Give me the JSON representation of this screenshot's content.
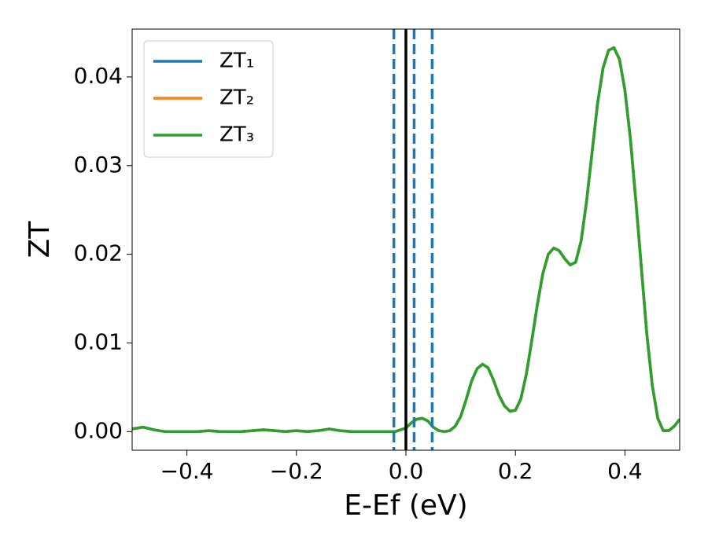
{
  "chart_data": {
    "type": "line",
    "xlabel": "E-Ef (eV)",
    "ylabel": "ZT",
    "x": [
      -0.5,
      -0.48,
      -0.46,
      -0.44,
      -0.42,
      -0.4,
      -0.38,
      -0.36,
      -0.34,
      -0.32,
      -0.3,
      -0.28,
      -0.26,
      -0.24,
      -0.22,
      -0.2,
      -0.18,
      -0.16,
      -0.14,
      -0.12,
      -0.1,
      -0.08,
      -0.06,
      -0.04,
      -0.02,
      0.0,
      0.01,
      0.02,
      0.03,
      0.04,
      0.05,
      0.06,
      0.07,
      0.08,
      0.09,
      0.1,
      0.11,
      0.12,
      0.13,
      0.14,
      0.15,
      0.16,
      0.17,
      0.18,
      0.19,
      0.2,
      0.21,
      0.22,
      0.23,
      0.24,
      0.25,
      0.26,
      0.27,
      0.28,
      0.29,
      0.3,
      0.31,
      0.32,
      0.33,
      0.34,
      0.35,
      0.36,
      0.37,
      0.38,
      0.39,
      0.4,
      0.41,
      0.42,
      0.43,
      0.44,
      0.45,
      0.46,
      0.47,
      0.48,
      0.49,
      0.5
    ],
    "series": [
      {
        "name": "ZT₁",
        "color": "#1f77b4",
        "values": [
          0.0003,
          0.0005,
          0.0002,
          0.0,
          0.0,
          0.0,
          0.0,
          0.0001,
          0.0,
          0.0,
          0.0,
          0.0001,
          0.0002,
          0.0001,
          0.0,
          0.0001,
          0.0,
          0.0001,
          0.0003,
          0.0001,
          0.0,
          0.0,
          0.0,
          0.0,
          0.0,
          0.0004,
          0.001,
          0.0014,
          0.0015,
          0.0012,
          0.0005,
          0.0001,
          0.0,
          0.0001,
          0.0006,
          0.0017,
          0.0036,
          0.0057,
          0.0071,
          0.0076,
          0.0072,
          0.0058,
          0.0041,
          0.0029,
          0.0023,
          0.0024,
          0.0037,
          0.0065,
          0.0103,
          0.0143,
          0.0178,
          0.02,
          0.0207,
          0.0204,
          0.0195,
          0.0188,
          0.0191,
          0.0215,
          0.026,
          0.0315,
          0.037,
          0.041,
          0.043,
          0.0433,
          0.042,
          0.0385,
          0.033,
          0.026,
          0.0185,
          0.011,
          0.0052,
          0.0015,
          0.0001,
          0.0001,
          0.0006,
          0.0014
        ]
      },
      {
        "name": "ZT₂",
        "color": "#ff7f0e",
        "values": [
          0.0003,
          0.0005,
          0.0002,
          0.0,
          0.0,
          0.0,
          0.0,
          0.0001,
          0.0,
          0.0,
          0.0,
          0.0001,
          0.0002,
          0.0001,
          0.0,
          0.0001,
          0.0,
          0.0001,
          0.0003,
          0.0001,
          0.0,
          0.0,
          0.0,
          0.0,
          0.0,
          0.0004,
          0.001,
          0.0014,
          0.0015,
          0.0012,
          0.0005,
          0.0001,
          0.0,
          0.0001,
          0.0006,
          0.0017,
          0.0036,
          0.0057,
          0.0071,
          0.0076,
          0.0072,
          0.0058,
          0.0041,
          0.0029,
          0.0023,
          0.0024,
          0.0037,
          0.0065,
          0.0103,
          0.0143,
          0.0178,
          0.02,
          0.0207,
          0.0204,
          0.0195,
          0.0188,
          0.0191,
          0.0215,
          0.026,
          0.0315,
          0.037,
          0.041,
          0.043,
          0.0433,
          0.042,
          0.0385,
          0.033,
          0.026,
          0.0185,
          0.011,
          0.0052,
          0.0015,
          0.0001,
          0.0001,
          0.0006,
          0.0014
        ]
      },
      {
        "name": "ZT₃",
        "color": "#2ca02c",
        "values": [
          0.0003,
          0.0005,
          0.0002,
          0.0,
          0.0,
          0.0,
          0.0,
          0.0001,
          0.0,
          0.0,
          0.0,
          0.0001,
          0.0002,
          0.0001,
          0.0,
          0.0001,
          0.0,
          0.0001,
          0.0003,
          0.0001,
          0.0,
          0.0,
          0.0,
          0.0,
          0.0,
          0.0004,
          0.001,
          0.0014,
          0.0015,
          0.0012,
          0.0005,
          0.0001,
          0.0,
          0.0001,
          0.0006,
          0.0017,
          0.0036,
          0.0057,
          0.0071,
          0.0076,
          0.0072,
          0.0058,
          0.0041,
          0.0029,
          0.0023,
          0.0024,
          0.0037,
          0.0065,
          0.0103,
          0.0143,
          0.0178,
          0.02,
          0.0207,
          0.0204,
          0.0195,
          0.0188,
          0.0191,
          0.0215,
          0.026,
          0.0315,
          0.037,
          0.041,
          0.043,
          0.0433,
          0.042,
          0.0385,
          0.033,
          0.026,
          0.0185,
          0.011,
          0.0052,
          0.0015,
          0.0001,
          0.0001,
          0.0006,
          0.0014
        ]
      }
    ],
    "vlines": [
      {
        "x": -0.022,
        "color": "#1f77b4",
        "style": "dashed"
      },
      {
        "x": 0.0,
        "color": "#000000",
        "style": "solid"
      },
      {
        "x": 0.015,
        "color": "#1f77b4",
        "style": "dashed"
      },
      {
        "x": 0.048,
        "color": "#1f77b4",
        "style": "dashed"
      }
    ],
    "xlim": [
      -0.5,
      0.5
    ],
    "ylim": [
      -0.0021,
      0.0454
    ],
    "xticks": [
      {
        "value": -0.4,
        "label": "−0.4"
      },
      {
        "value": -0.2,
        "label": "−0.2"
      },
      {
        "value": 0.0,
        "label": "0.0"
      },
      {
        "value": 0.2,
        "label": "0.2"
      },
      {
        "value": 0.4,
        "label": "0.4"
      }
    ],
    "yticks": [
      {
        "value": 0.0,
        "label": "0.00"
      },
      {
        "value": 0.01,
        "label": "0.01"
      },
      {
        "value": 0.02,
        "label": "0.02"
      },
      {
        "value": 0.03,
        "label": "0.03"
      },
      {
        "value": 0.04,
        "label": "0.04"
      }
    ],
    "legend": "upper left",
    "grid": false
  }
}
